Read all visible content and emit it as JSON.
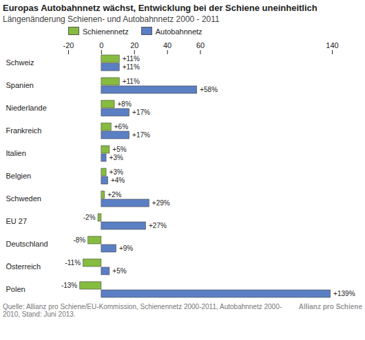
{
  "chart_data": {
    "type": "bar",
    "orientation": "horizontal",
    "title": "Europas Autobahnnetz wächst, Entwicklung bei der Schiene uneinheitlich",
    "subtitle": "Längenänderung Schienen- und Autobahnnetz 2000 - 2011",
    "categories": [
      "Schweiz",
      "Spanien",
      "Niederlande",
      "Frankreich",
      "Italien",
      "Belgien",
      "Schweden",
      "EU 27",
      "Deutschland",
      "Österreich",
      "Polen"
    ],
    "series": [
      {
        "name": "Schienennetz",
        "color": "#86bc3f",
        "values": [
          11,
          11,
          8,
          6,
          5,
          3,
          2,
          -2,
          -8,
          -11,
          -13
        ],
        "value_labels": [
          "+11%",
          "+11%",
          "+8%",
          "+6%",
          "+5%",
          "+3%",
          "+2%",
          "-2%",
          "-8%",
          "-11%",
          "-13%"
        ]
      },
      {
        "name": "Autobahnnetz",
        "color": "#5b7fc4",
        "values": [
          11,
          58,
          17,
          17,
          3,
          4,
          29,
          27,
          9,
          5,
          139
        ],
        "value_labels": [
          "+11%",
          "+58%",
          "+17%",
          "+17%",
          "+3%",
          "+4%",
          "+29%",
          "+27%",
          "+9%",
          "+5%",
          "+139%"
        ]
      }
    ],
    "xlim": [
      -20,
      140
    ],
    "xticks": [
      -20,
      0,
      20,
      40,
      60,
      140
    ],
    "grid": false,
    "data_labels": true,
    "legend": "top",
    "caption": "Quelle: Allianz pro Schiene/EU-Kommission, Schienennetz 2000-2011, Autobahnnetz 2000-2010, Stand: Juni 2013.",
    "annotations": [
      "Allianz pro Schiene"
    ]
  }
}
